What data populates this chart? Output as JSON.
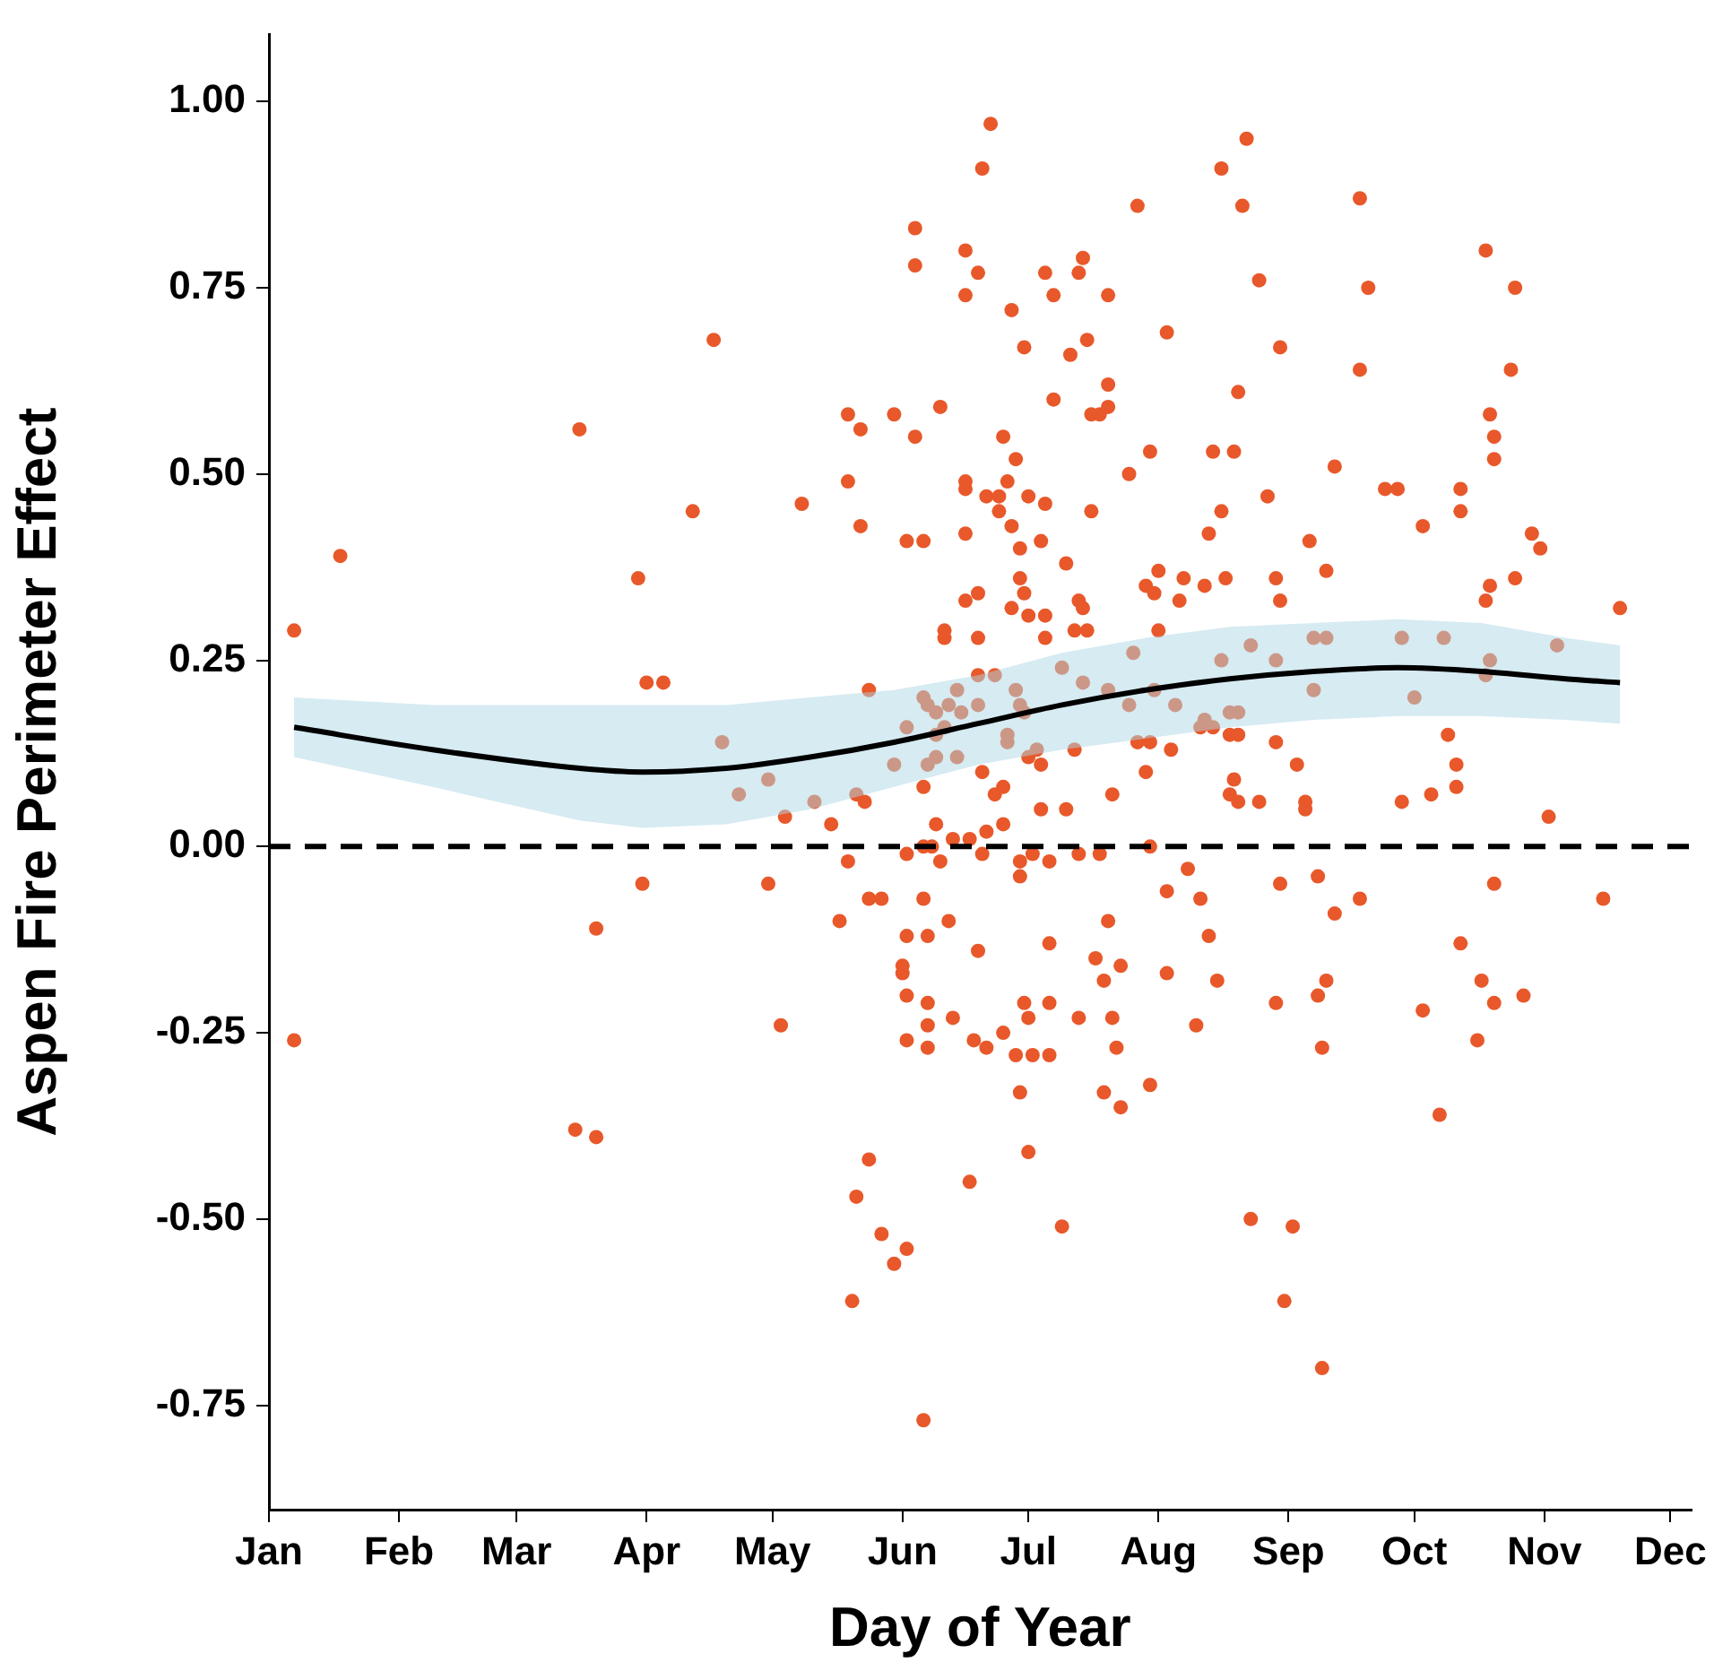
{
  "chart_data": {
    "type": "scatter",
    "xlabel": "Day of Year",
    "ylabel": "Aspen Fire Perimeter Effect",
    "xlim": [
      "--01-01",
      "--12-06"
    ],
    "ylim": [
      -0.89,
      1.09
    ],
    "xticks": [
      {
        "value": "--01-01",
        "label": "Jan"
      },
      {
        "value": "--02-01",
        "label": "Feb"
      },
      {
        "value": "--03-01",
        "label": "Mar"
      },
      {
        "value": "--04-01",
        "label": "Apr"
      },
      {
        "value": "--05-01",
        "label": "May"
      },
      {
        "value": "--06-01",
        "label": "Jun"
      },
      {
        "value": "--07-01",
        "label": "Jul"
      },
      {
        "value": "--08-01",
        "label": "Aug"
      },
      {
        "value": "--09-01",
        "label": "Sep"
      },
      {
        "value": "--10-01",
        "label": "Oct"
      },
      {
        "value": "--11-01",
        "label": "Nov"
      },
      {
        "value": "--12-01",
        "label": "Dec"
      }
    ],
    "yticks": [
      {
        "value": 1,
        "label": "1.00"
      },
      {
        "value": 0.75,
        "label": "0.75"
      },
      {
        "value": 0.5,
        "label": "0.50"
      },
      {
        "value": 0.25,
        "label": "0.25"
      },
      {
        "value": 0,
        "label": "0.00"
      },
      {
        "value": -0.25,
        "label": "-0.25"
      },
      {
        "value": -0.5,
        "label": "-0.50"
      },
      {
        "value": -0.75,
        "label": "-0.75"
      }
    ],
    "grid": false,
    "legend": false,
    "marker": "circle",
    "ref_lines": [
      {
        "axis": "y",
        "value": 0,
        "color": "#000000",
        "line_style": "dashed"
      }
    ],
    "series": [
      {
        "color": "#e8582a",
        "x": [
          "--01-07",
          "--01-07",
          "--01-18",
          "--03-16",
          "--03-15",
          "--03-20",
          "--03-20",
          "--03-30",
          "--04-01",
          "--04-05",
          "--03-31",
          "--04-12",
          "--04-17",
          "--04-19",
          "--04-23",
          "--04-30",
          "--04-30",
          "--05-03",
          "--05-08",
          "--05-04",
          "--06-22",
          "--06-20",
          "--06-04",
          "--06-04",
          "--06-16",
          "--06-19",
          "--06-16",
          "--07-05",
          "--07-07",
          "--07-14",
          "--07-13",
          "--07-20",
          "--06-27",
          "--06-30",
          "--07-11",
          "--07-15",
          "--07-20",
          "--07-07",
          "--07-16",
          "--07-20",
          "--05-19",
          "--05-22",
          "--05-30",
          "--06-04",
          "--06-10",
          "--06-25",
          "--06-28",
          "--05-19",
          "--05-22",
          "--06-02",
          "--06-06",
          "--06-16",
          "--06-16",
          "--06-21",
          "--06-24",
          "--06-26",
          "--06-24",
          "--06-27",
          "--07-01",
          "--07-05",
          "--07-04",
          "--06-29",
          "--07-16",
          "--07-10",
          "--06-16",
          "--06-29",
          "--06-30",
          "--06-27",
          "--07-01",
          "--07-05",
          "--06-16",
          "--06-19",
          "--06-11",
          "--06-11",
          "--06-19",
          "--07-05",
          "--07-13",
          "--07-14",
          "--07-12",
          "--07-15",
          "--07-09",
          "--07-14",
          "--05-24",
          "--06-19",
          "--06-23",
          "--06-28",
          "--06-14",
          "--06-06",
          "--06-07",
          "--06-09",
          "--06-12",
          "--06-15",
          "--06-19",
          "--06-02",
          "--06-09",
          "--06-11",
          "--06-26",
          "--06-26",
          "--06-29",
          "--06-30",
          "--07-20",
          "--05-30",
          "--06-07",
          "--06-09",
          "--06-14",
          "--05-11",
          "--05-21",
          "--06-20",
          "--07-03",
          "--07-01",
          "--07-04",
          "--07-12",
          "--06-06",
          "--05-23",
          "--06-23",
          "--06-25",
          "--07-21",
          "--05-15",
          "--06-09",
          "--07-04",
          "--07-10",
          "--06-25",
          "--06-21",
          "--06-13",
          "--06-17",
          "--06-06",
          "--06-08",
          "--05-19",
          "--06-02",
          "--06-10",
          "--06-20",
          "--06-29",
          "--06-29",
          "--07-02",
          "--07-06",
          "--07-13",
          "--07-18",
          "--05-24",
          "--05-27",
          "--06-06",
          "--05-17",
          "--06-12",
          "--07-20",
          "--06-02",
          "--06-07",
          "--06-19",
          "--07-06",
          "--07-17",
          "--07-23",
          "--06-01",
          "--06-01",
          "--07-19",
          "--06-02",
          "--06-07",
          "--06-07",
          "--06-13",
          "--06-30",
          "--07-01",
          "--07-06",
          "--07-13",
          "--07-21",
          "--06-02",
          "--06-07",
          "--06-18",
          "--06-21",
          "--06-25",
          "--06-28",
          "--07-02",
          "--07-06",
          "--07-22",
          "--06-29",
          "--07-19",
          "--07-23",
          "--05-24",
          "--06-17",
          "--07-01",
          "--05-21",
          "--07-09",
          "--05-27",
          "--06-02",
          "--05-30",
          "--05-20",
          "--06-06",
          "--08-22",
          "--08-16",
          "--07-27",
          "--08-21",
          "--09-18",
          "--08-25",
          "--09-20",
          "--08-03",
          "--08-30",
          "--09-18",
          "--08-20",
          "--07-18",
          "--07-30",
          "--08-14",
          "--08-19",
          "--09-12",
          "--07-25",
          "--08-27",
          "--09-24",
          "--09-27",
          "--08-16",
          "--10-03",
          "--08-13",
          "--09-06",
          "--08-01",
          "--09-10",
          "--07-29",
          "--07-31",
          "--08-07",
          "--08-12",
          "--08-17",
          "--08-29",
          "--08-06",
          "--08-30",
          "--08-01",
          "--07-26",
          "--08-23",
          "--08-16",
          "--08-29",
          "--09-07",
          "--09-10",
          "--09-28",
          "--07-31",
          "--09-07",
          "--10-01",
          "--07-25",
          "--08-05",
          "--08-12",
          "--08-18",
          "--08-20",
          "--08-11",
          "--08-14",
          "--07-27",
          "--07-30",
          "--08-18",
          "--08-20",
          "--08-29",
          "--08-04",
          "--07-29",
          "--09-03",
          "--08-19",
          "--08-18",
          "--08-20",
          "--08-25",
          "--09-05",
          "--09-05",
          "--09-28",
          "--07-30",
          "--08-08",
          "--08-03",
          "--08-11",
          "--08-30",
          "--09-08",
          "--09-18",
          "--09-12",
          "--08-13",
          "--08-03",
          "--08-15",
          "--09-10",
          "--09-08",
          "--08-29",
          "--10-03",
          "--08-10",
          "--09-09",
          "--07-30",
          "--08-23",
          "--09-02",
          "--08-31",
          "--09-09",
          "--10-18",
          "--10-25",
          "--10-24",
          "--10-19",
          "--10-20",
          "--10-20",
          "--10-12",
          "--10-12",
          "--10-29",
          "--10-31",
          "--10-25",
          "--10-19",
          "--10-18",
          "--11-19",
          "--10-08",
          "--10-19",
          "--10-18",
          "--11-04",
          "--10-09",
          "--10-11",
          "--10-11",
          "--10-05",
          "--11-02",
          "--10-20",
          "--11-15",
          "--10-12",
          "--10-17",
          "--10-20",
          "--10-27",
          "--10-16",
          "--10-07"
        ],
        "values": [
          0.29,
          -0.26,
          0.39,
          0.56,
          -0.38,
          -0.39,
          -0.11,
          0.36,
          0.22,
          0.22,
          -0.05,
          0.45,
          0.68,
          0.14,
          0.07,
          0.09,
          -0.05,
          -0.24,
          0.46,
          0.04,
          0.97,
          0.91,
          0.83,
          0.78,
          0.8,
          0.77,
          0.74,
          0.77,
          0.74,
          0.79,
          0.77,
          0.74,
          0.72,
          0.67,
          0.66,
          0.68,
          0.62,
          0.6,
          0.58,
          0.59,
          0.58,
          0.56,
          0.58,
          0.55,
          0.59,
          0.55,
          0.52,
          0.49,
          0.43,
          0.41,
          0.41,
          0.49,
          0.48,
          0.47,
          0.47,
          0.49,
          0.45,
          0.43,
          0.47,
          0.46,
          0.41,
          0.4,
          0.45,
          0.38,
          0.42,
          0.36,
          0.34,
          0.32,
          0.31,
          0.31,
          0.33,
          0.34,
          0.29,
          0.28,
          0.28,
          0.28,
          0.33,
          0.32,
          0.29,
          0.29,
          0.24,
          0.22,
          0.21,
          0.23,
          0.23,
          0.21,
          0.21,
          0.2,
          0.19,
          0.18,
          0.19,
          0.18,
          0.19,
          0.16,
          0.15,
          0.16,
          0.15,
          0.14,
          0.19,
          0.18,
          0.21,
          0.11,
          0.11,
          0.12,
          0.12,
          0.06,
          0.07,
          0.1,
          0.13,
          0.12,
          0.11,
          0.13,
          0.08,
          0.06,
          0.07,
          0.08,
          0.07,
          0.03,
          0.03,
          0.05,
          0.05,
          0.03,
          0.02,
          0.01,
          0.01,
          0,
          0,
          -0.02,
          -0.01,
          -0.02,
          -0.01,
          -0.02,
          -0.04,
          -0.01,
          -0.02,
          -0.01,
          -0.01,
          -0.07,
          -0.07,
          -0.07,
          -0.1,
          -0.1,
          -0.1,
          -0.12,
          -0.12,
          -0.14,
          -0.13,
          -0.15,
          -0.16,
          -0.16,
          -0.17,
          -0.18,
          -0.2,
          -0.21,
          -0.24,
          -0.23,
          -0.21,
          -0.23,
          -0.21,
          -0.23,
          -0.23,
          -0.26,
          -0.27,
          -0.26,
          -0.27,
          -0.25,
          -0.28,
          -0.28,
          -0.28,
          -0.27,
          -0.33,
          -0.33,
          -0.35,
          -0.42,
          -0.45,
          -0.41,
          -0.47,
          -0.51,
          -0.52,
          -0.54,
          -0.56,
          -0.61,
          -0.77,
          0.95,
          0.91,
          0.86,
          0.86,
          0.87,
          0.76,
          0.75,
          0.69,
          0.67,
          0.64,
          0.61,
          0.58,
          0.53,
          0.53,
          0.53,
          0.51,
          0.5,
          0.47,
          0.48,
          0.48,
          0.45,
          0.43,
          0.42,
          0.41,
          0.37,
          0.37,
          0.35,
          0.34,
          0.36,
          0.35,
          0.36,
          0.36,
          0.33,
          0.33,
          0.29,
          0.26,
          0.27,
          0.25,
          0.25,
          0.28,
          0.28,
          0.28,
          0.21,
          0.21,
          0.2,
          0.19,
          0.19,
          0.17,
          0.18,
          0.18,
          0.16,
          0.16,
          0.14,
          0.14,
          0.15,
          0.15,
          0.14,
          0.13,
          0.1,
          0.11,
          0.09,
          0.07,
          0.06,
          0.06,
          0.06,
          0.05,
          0.06,
          0,
          -0.03,
          -0.06,
          -0.07,
          -0.05,
          -0.04,
          -0.07,
          -0.09,
          -0.12,
          -0.17,
          -0.18,
          -0.18,
          -0.2,
          -0.21,
          -0.22,
          -0.24,
          -0.27,
          -0.32,
          -0.5,
          -0.51,
          -0.61,
          -0.7,
          0.8,
          0.75,
          0.64,
          0.58,
          0.55,
          0.52,
          0.48,
          0.45,
          0.42,
          0.4,
          0.36,
          0.35,
          0.33,
          0.32,
          0.28,
          0.25,
          0.23,
          0.27,
          0.15,
          0.11,
          0.08,
          0.07,
          0.04,
          -0.05,
          -0.07,
          -0.13,
          -0.18,
          -0.21,
          -0.2,
          -0.26,
          -0.36
        ]
      },
      {
        "type": "line",
        "color": "#000000",
        "line_style": "solid",
        "marker": "none",
        "x": [
          "--01-07",
          "--02-09",
          "--03-16",
          "--03-31",
          "--04-20",
          "--05-10",
          "--05-30",
          "--06-19",
          "--07-09",
          "--07-29",
          "--08-18",
          "--09-07",
          "--09-27",
          "--10-17",
          "--11-06",
          "--11-19"
        ],
        "values": [
          0.16,
          0.13,
          0.105,
          0.1,
          0.105,
          0.12,
          0.14,
          0.165,
          0.19,
          0.21,
          0.225,
          0.235,
          0.24,
          0.235,
          0.225,
          0.22
        ],
        "lower": [
          0.12,
          0.08,
          0.035,
          0.025,
          0.03,
          0.05,
          0.08,
          0.11,
          0.13,
          0.145,
          0.16,
          0.17,
          0.175,
          0.175,
          0.17,
          0.165
        ],
        "upper": [
          0.2,
          0.19,
          0.19,
          0.19,
          0.19,
          0.2,
          0.21,
          0.23,
          0.26,
          0.28,
          0.295,
          0.3,
          0.305,
          0.3,
          0.28,
          0.27
        ]
      }
    ]
  }
}
